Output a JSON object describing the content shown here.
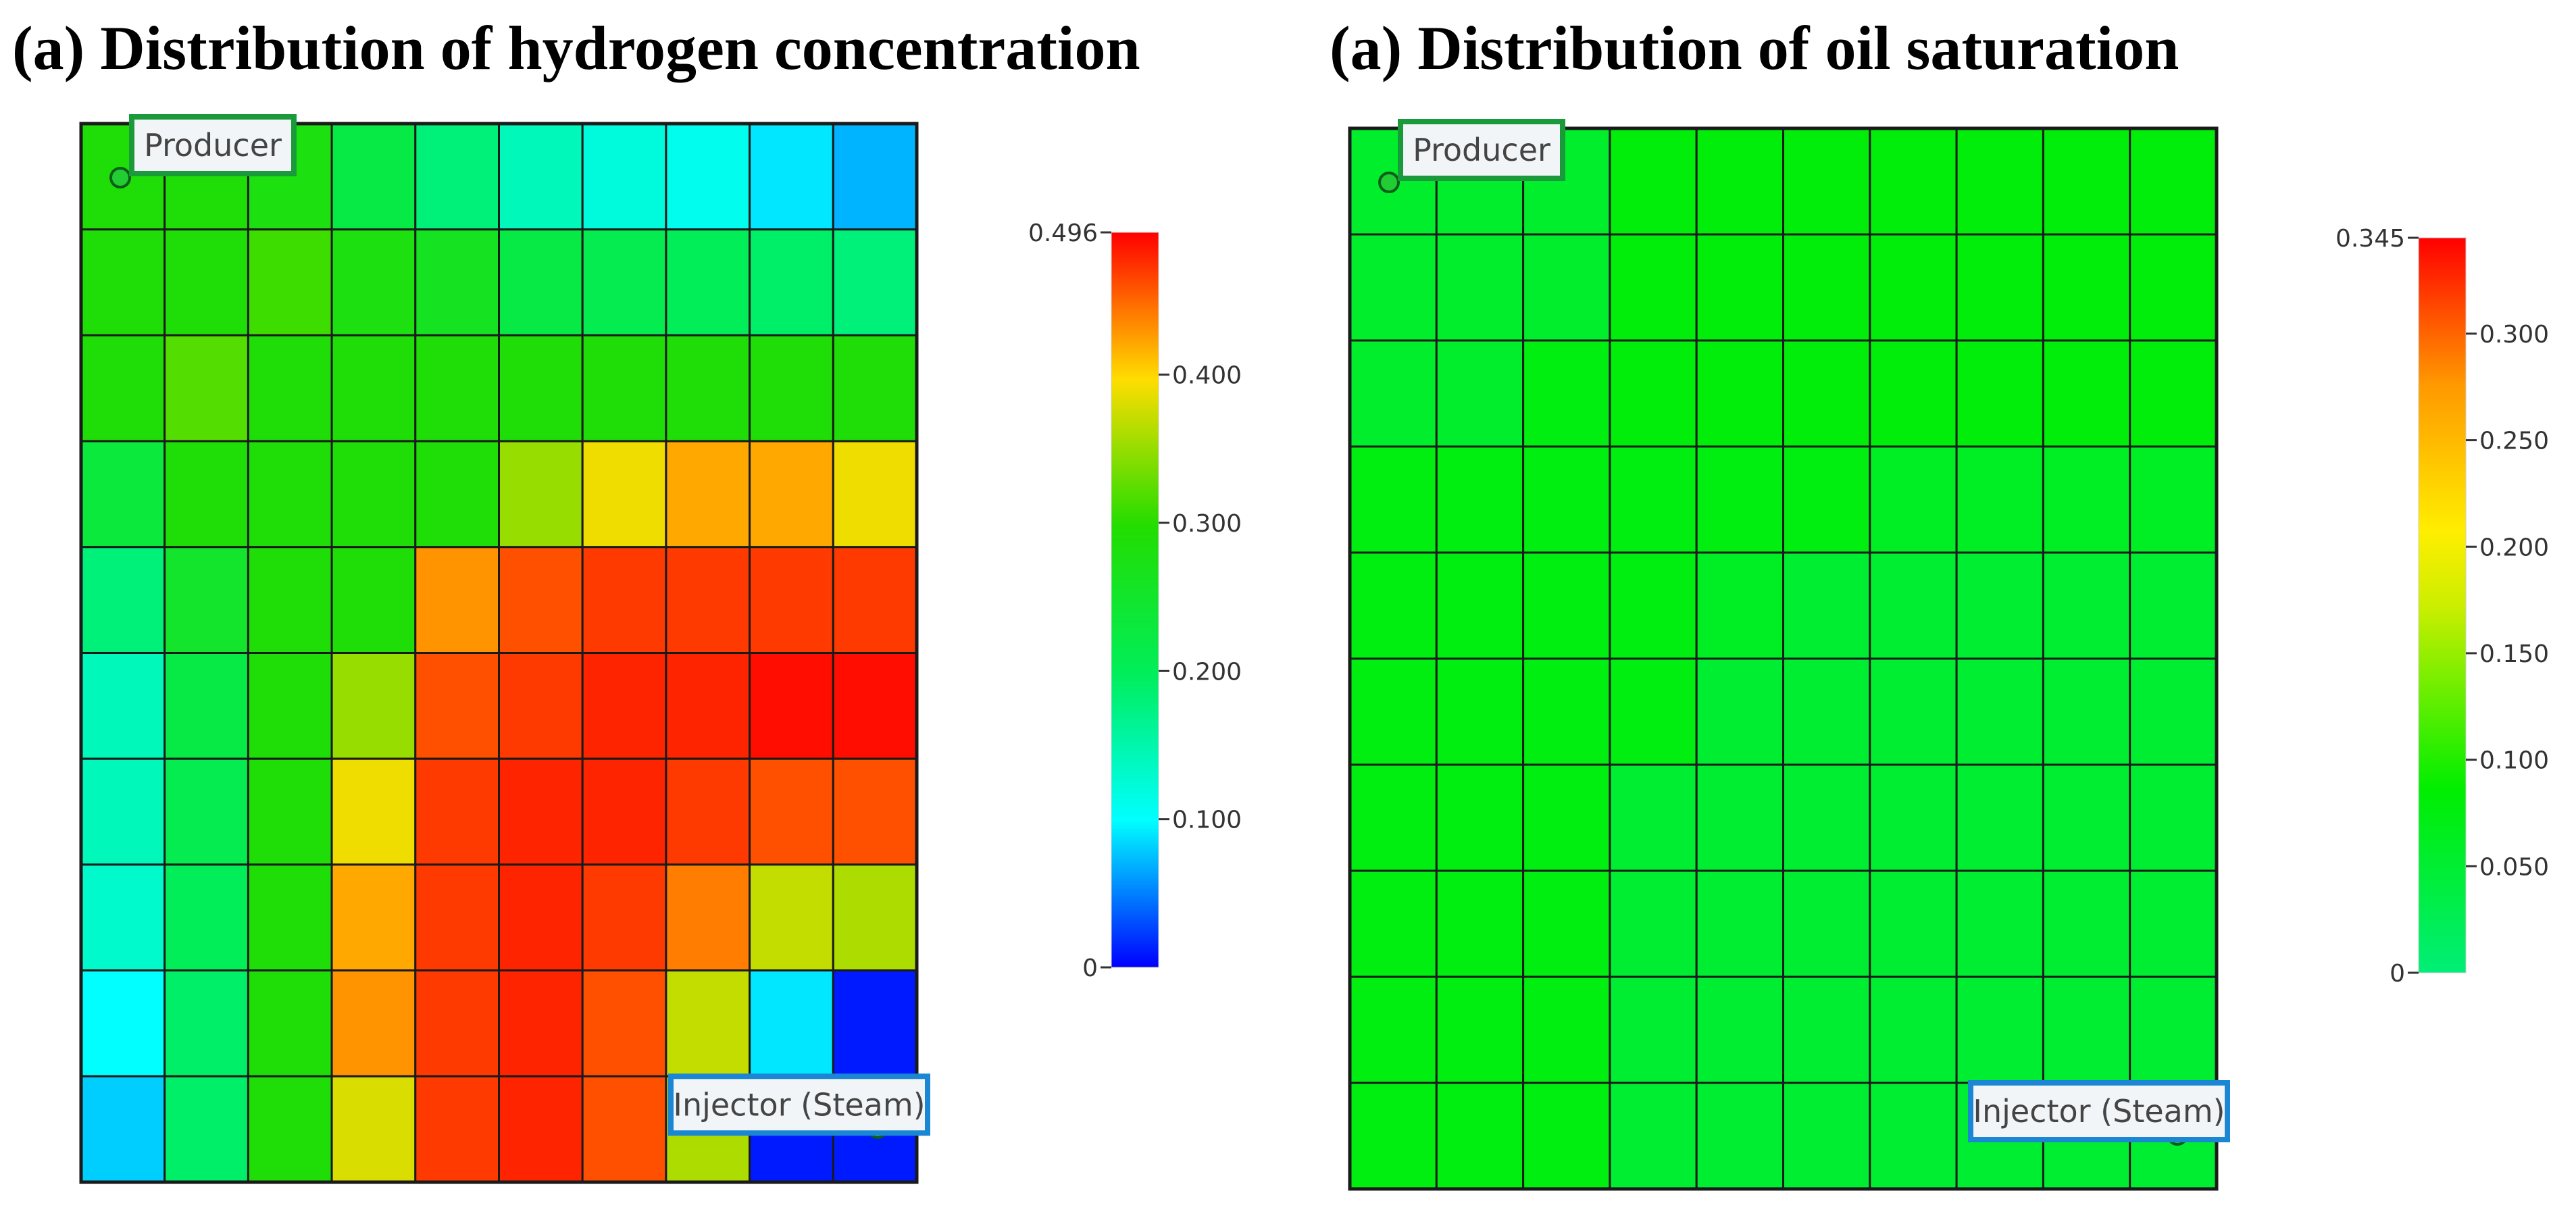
{
  "chart_data": [
    {
      "type": "heatmap",
      "title": "(a) Distribution of hydrogen concentration",
      "rows": 10,
      "cols": 10,
      "values": [
        [
          0.29,
          0.29,
          0.28,
          0.22,
          0.18,
          0.14,
          0.12,
          0.11,
          0.09,
          0.07
        ],
        [
          0.29,
          0.29,
          0.31,
          0.28,
          0.26,
          0.22,
          0.21,
          0.2,
          0.19,
          0.18
        ],
        [
          0.29,
          0.32,
          0.29,
          0.29,
          0.29,
          0.29,
          0.29,
          0.29,
          0.29,
          0.29
        ],
        [
          0.23,
          0.29,
          0.29,
          0.29,
          0.29,
          0.35,
          0.39,
          0.42,
          0.42,
          0.39
        ],
        [
          0.18,
          0.25,
          0.29,
          0.29,
          0.43,
          0.46,
          0.47,
          0.47,
          0.47,
          0.47
        ],
        [
          0.14,
          0.22,
          0.29,
          0.35,
          0.46,
          0.47,
          0.48,
          0.48,
          0.49,
          0.49
        ],
        [
          0.14,
          0.21,
          0.29,
          0.39,
          0.47,
          0.48,
          0.48,
          0.47,
          0.46,
          0.46
        ],
        [
          0.13,
          0.2,
          0.29,
          0.42,
          0.47,
          0.48,
          0.47,
          0.44,
          0.37,
          0.36
        ],
        [
          0.1,
          0.19,
          0.29,
          0.43,
          0.47,
          0.48,
          0.46,
          0.37,
          0.09,
          0.01
        ],
        [
          0.08,
          0.19,
          0.29,
          0.38,
          0.47,
          0.48,
          0.46,
          0.36,
          0.01,
          0.01
        ]
      ],
      "colorbar": {
        "min": 0,
        "max": 0.496,
        "ticks": [
          {
            "value": 0,
            "label": "0"
          },
          {
            "value": 0.1,
            "label": "0.100"
          },
          {
            "value": 0.2,
            "label": "0.200"
          },
          {
            "value": 0.3,
            "label": "0.300"
          },
          {
            "value": 0.4,
            "label": "0.400"
          },
          {
            "value": 0.496,
            "label": "0.496"
          }
        ],
        "colormap": "rainbow"
      },
      "wells": [
        {
          "label": "Producer",
          "row": 0,
          "col": 0,
          "corner": "top-left",
          "box_color": "#1a9a3a"
        },
        {
          "label": "Injector (Steam)",
          "row": 9,
          "col": 9,
          "corner": "bottom-right",
          "box_color": "#1b86d4"
        }
      ]
    },
    {
      "type": "heatmap",
      "title": "(a) Distribution of oil saturation",
      "rows": 10,
      "cols": 10,
      "values": [
        [
          0.055,
          0.055,
          0.055,
          0.08,
          0.08,
          0.08,
          0.08,
          0.08,
          0.08,
          0.08
        ],
        [
          0.055,
          0.055,
          0.055,
          0.08,
          0.08,
          0.08,
          0.08,
          0.08,
          0.08,
          0.08
        ],
        [
          0.055,
          0.055,
          0.075,
          0.08,
          0.08,
          0.08,
          0.08,
          0.08,
          0.08,
          0.08
        ],
        [
          0.075,
          0.075,
          0.075,
          0.075,
          0.075,
          0.075,
          0.06,
          0.06,
          0.06,
          0.06
        ],
        [
          0.075,
          0.075,
          0.075,
          0.075,
          0.06,
          0.05,
          0.05,
          0.05,
          0.05,
          0.05
        ],
        [
          0.075,
          0.075,
          0.075,
          0.075,
          0.05,
          0.05,
          0.05,
          0.05,
          0.05,
          0.05
        ],
        [
          0.075,
          0.075,
          0.075,
          0.05,
          0.05,
          0.05,
          0.05,
          0.05,
          0.05,
          0.05
        ],
        [
          0.075,
          0.075,
          0.075,
          0.05,
          0.05,
          0.05,
          0.05,
          0.05,
          0.05,
          0.05
        ],
        [
          0.075,
          0.075,
          0.075,
          0.05,
          0.05,
          0.05,
          0.05,
          0.05,
          0.05,
          0.05
        ],
        [
          0.075,
          0.075,
          0.075,
          0.05,
          0.05,
          0.05,
          0.05,
          0.05,
          0.05,
          0.05
        ]
      ],
      "colorbar": {
        "min": 0,
        "max": 0.345,
        "ticks": [
          {
            "value": 0,
            "label": "0"
          },
          {
            "value": 0.05,
            "label": "0.050"
          },
          {
            "value": 0.1,
            "label": "0.100"
          },
          {
            "value": 0.15,
            "label": "0.150"
          },
          {
            "value": 0.2,
            "label": "0.200"
          },
          {
            "value": 0.25,
            "label": "0.250"
          },
          {
            "value": 0.3,
            "label": "0.300"
          },
          {
            "value": 0.345,
            "label": "0.345"
          }
        ],
        "colormap": "green-yellow-red"
      },
      "wells": [
        {
          "label": "Producer",
          "row": 0,
          "col": 0,
          "corner": "top-left",
          "box_color": "#1a9a3a"
        },
        {
          "label": "Injector (Steam)",
          "row": 9,
          "col": 9,
          "corner": "bottom-right",
          "box_color": "#1b86d4"
        }
      ]
    }
  ]
}
